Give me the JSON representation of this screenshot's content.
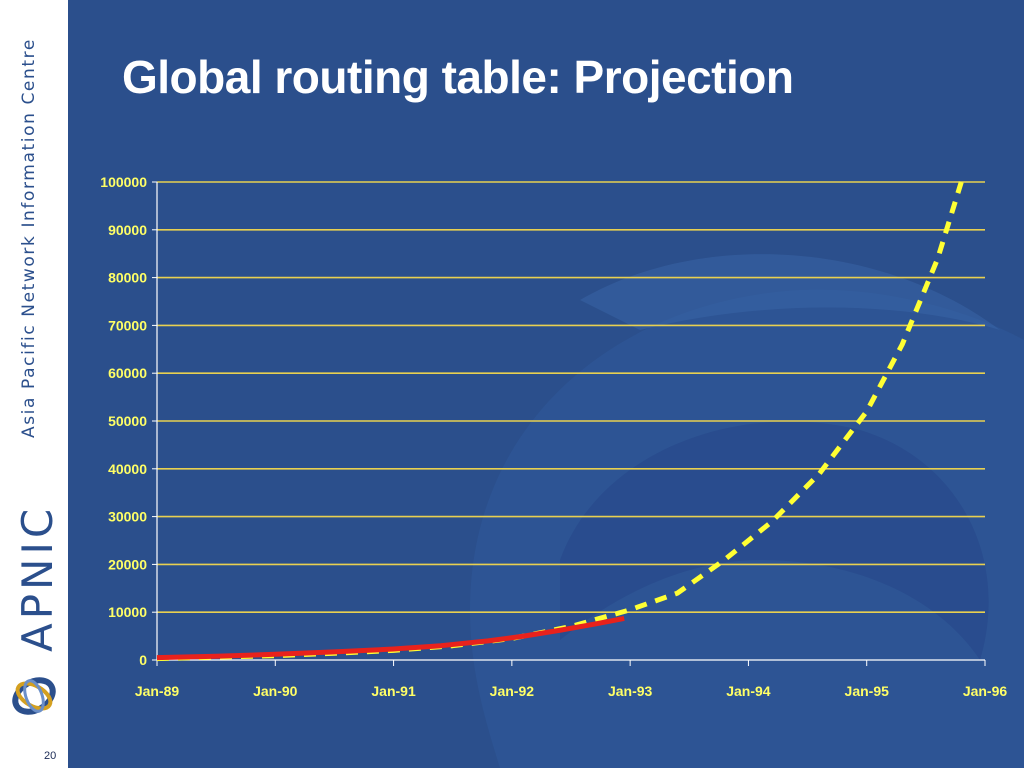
{
  "slide": {
    "title": "Global routing table: Projection",
    "page_number": "20",
    "sidebar_text": "Asia Pacific Network Information Centre",
    "brand": "APNIC"
  },
  "colors": {
    "background": "#2b4f8c",
    "grid": "#e8d050",
    "axis_labels": "#ffff66",
    "actual_line": "#e8221c",
    "projection_line": "#ffff33"
  },
  "chart_data": {
    "type": "line",
    "title": "",
    "xlabel": "",
    "ylabel": "",
    "x_ticks": [
      "Jan-89",
      "Jan-90",
      "Jan-91",
      "Jan-92",
      "Jan-93",
      "Jan-94",
      "Jan-95",
      "Jan-96"
    ],
    "y_ticks": [
      "0",
      "10000",
      "20000",
      "30000",
      "40000",
      "50000",
      "60000",
      "70000",
      "80000",
      "90000",
      "100000"
    ],
    "ylim": [
      0,
      100000
    ],
    "xlim": [
      1989.0,
      1996.0
    ],
    "grid": true,
    "legend": "none",
    "series": [
      {
        "style": "solid",
        "color": "#e8221c",
        "x": [
          1989.0,
          1989.5,
          1990.0,
          1990.5,
          1991.0,
          1991.4,
          1991.8,
          1992.1,
          1992.4,
          1992.7,
          1992.95
        ],
        "y": [
          500,
          800,
          1200,
          1700,
          2300,
          3000,
          4000,
          5000,
          6200,
          7500,
          8700
        ]
      },
      {
        "style": "dashed",
        "color": "#ffff33",
        "x": [
          1989.0,
          1989.5,
          1990.0,
          1990.5,
          1991.0,
          1991.5,
          1992.0,
          1992.5,
          1993.0,
          1993.4,
          1993.8,
          1994.2,
          1994.6,
          1995.0,
          1995.3,
          1995.6,
          1995.8
        ],
        "y": [
          300,
          600,
          900,
          1400,
          2000,
          3000,
          4500,
          7000,
          10500,
          14000,
          21000,
          29000,
          39000,
          52000,
          66000,
          84000,
          100000
        ]
      }
    ]
  }
}
